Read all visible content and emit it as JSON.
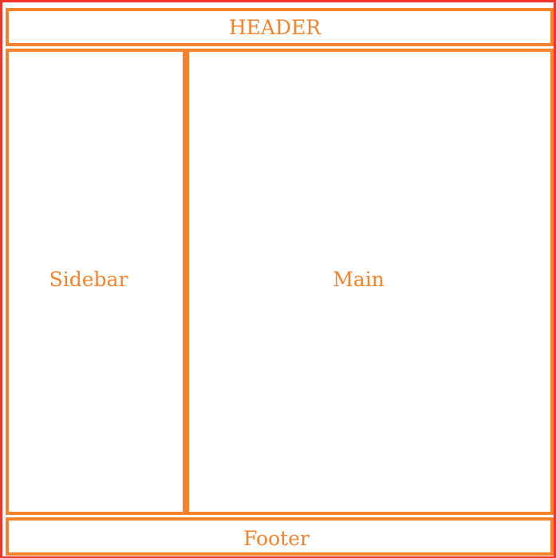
{
  "layout": {
    "header": {
      "label": "HEADER"
    },
    "sidebar": {
      "label": "Sidebar"
    },
    "main": {
      "label": "Main"
    },
    "footer": {
      "label": "Footer"
    }
  },
  "colors": {
    "outer_border": "#f0352a",
    "box_border": "#f7822c",
    "text": "#f7822c",
    "background": "#ffffff"
  }
}
